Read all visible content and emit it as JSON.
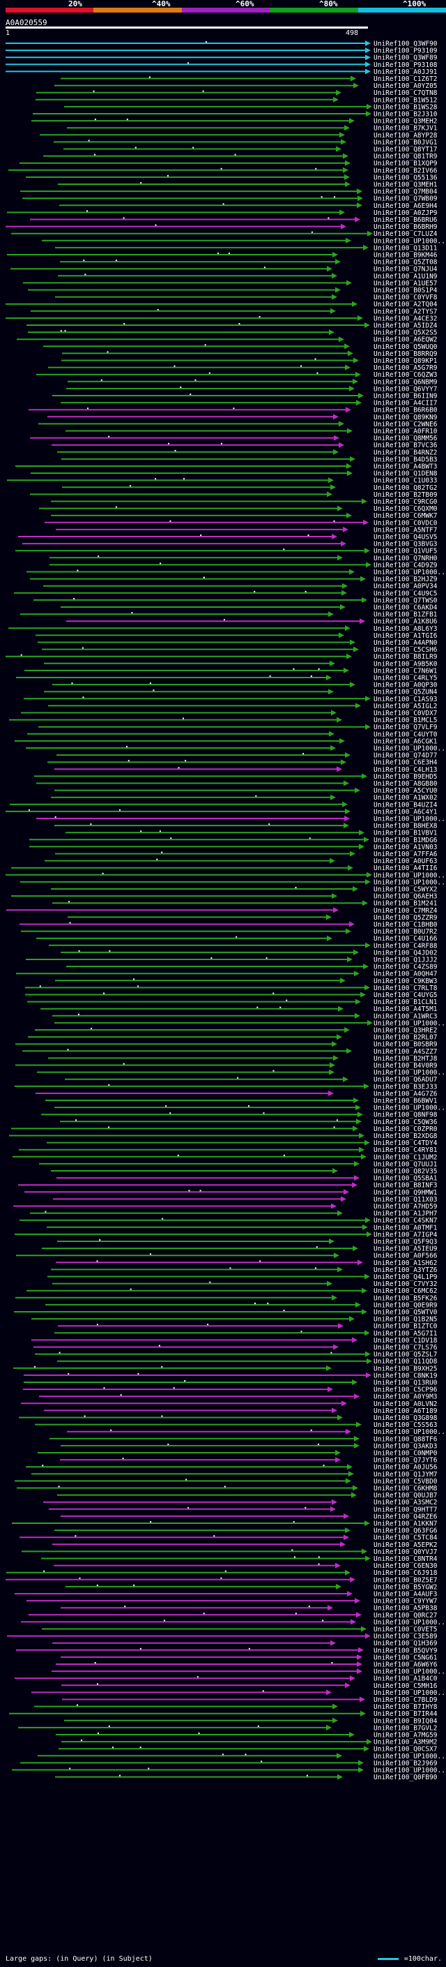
{
  "scale": {
    "labels": [
      "20%",
      "^40%",
      "^60%",
      "^80%",
      "^100%"
    ],
    "colors": [
      "#e0102a",
      "#e07a10",
      "#a020c0",
      "#10a020",
      "#10c0e0"
    ]
  },
  "query": {
    "title": "A0A020559",
    "start": "1",
    "end": "498"
  },
  "legend": {
    "large_gaps": "Large gaps:",
    "in_query": "(in Query)",
    "in_subject": "(in Subject)",
    "scale_note": "=100char."
  },
  "colors": {
    "cyan": "#22c8e0",
    "green": "#2aa51c",
    "magenta": "#c02cc4",
    "background": "#000010"
  },
  "hits": [
    {
      "id": "UniRef100_Q3WF90",
      "color": "cyan"
    },
    {
      "id": "UniRef100_P93109",
      "color": "cyan"
    },
    {
      "id": "UniRef100_Q3WF89",
      "color": "cyan"
    },
    {
      "id": "UniRef100_P93108",
      "color": "cyan"
    },
    {
      "id": "UniRef100_A0JJ91",
      "color": "cyan"
    },
    {
      "id": "UniRef100_C1Z6T2",
      "color": "green"
    },
    {
      "id": "UniRef100_A0YZ05",
      "color": "green"
    },
    {
      "id": "UniRef100_C7QTN8",
      "color": "green"
    },
    {
      "id": "UniRef100_B1W512",
      "color": "green"
    },
    {
      "id": "UniRef100_B1WS28",
      "color": "green"
    },
    {
      "id": "UniRef100_B2J310",
      "color": "green"
    },
    {
      "id": "UniRef100_Q3MEH2",
      "color": "green"
    },
    {
      "id": "UniRef100_B7KJV1",
      "color": "green"
    },
    {
      "id": "UniRef100_A8YP28",
      "color": "green"
    },
    {
      "id": "UniRef100_B0JVG1",
      "color": "green"
    },
    {
      "id": "UniRef100_Q8YT17",
      "color": "green"
    },
    {
      "id": "UniRef100_Q81TR9",
      "color": "green"
    },
    {
      "id": "UniRef100_B1XQP9",
      "color": "green"
    },
    {
      "id": "UniRef100_B2IV66",
      "color": "green"
    },
    {
      "id": "UniRef100_Q55136",
      "color": "green"
    },
    {
      "id": "UniRef100_Q3MEH1",
      "color": "green"
    },
    {
      "id": "UniRef100_Q7MB04",
      "color": "green"
    },
    {
      "id": "UniRef100_Q7WB09",
      "color": "green"
    },
    {
      "id": "UniRef100_A6E9H4",
      "color": "green"
    },
    {
      "id": "UniRef100_A0ZJP9",
      "color": "green"
    },
    {
      "id": "UniRef100_B6BRU6",
      "color": "magenta"
    },
    {
      "id": "UniRef100_B6BRH9",
      "color": "magenta"
    },
    {
      "id": "UniRef100_C7LUZ4",
      "color": "green"
    },
    {
      "id": "UniRef100_UP1000...",
      "color": "green"
    },
    {
      "id": "UniRef100_Q13D11",
      "color": "green"
    },
    {
      "id": "UniRef100_B9KM46",
      "color": "green"
    },
    {
      "id": "UniRef100_Q5ZT08",
      "color": "green"
    },
    {
      "id": "UniRef100_Q7NJU4",
      "color": "green"
    },
    {
      "id": "UniRef100_A1U1N9",
      "color": "green"
    },
    {
      "id": "UniRef100_A1UE57",
      "color": "green"
    },
    {
      "id": "UniRef100_B0S1P4",
      "color": "green"
    },
    {
      "id": "UniRef100_C0YVF8",
      "color": "green"
    },
    {
      "id": "UniRef100_A2TQ04",
      "color": "green"
    },
    {
      "id": "UniRef100_A2TYS7",
      "color": "green"
    },
    {
      "id": "UniRef100_A4CE32",
      "color": "green"
    },
    {
      "id": "UniRef100_A5IDZ4",
      "color": "green"
    },
    {
      "id": "UniRef100_Q5X2S5",
      "color": "green"
    },
    {
      "id": "UniRef100_A6EQW2",
      "color": "green"
    },
    {
      "id": "UniRef100_Q5WUQ0",
      "color": "green"
    },
    {
      "id": "UniRef100_B8RRQ9",
      "color": "green"
    },
    {
      "id": "UniRef100_Q89KP1",
      "color": "green"
    },
    {
      "id": "UniRef100_A5G7R9",
      "color": "green"
    },
    {
      "id": "UniRef100_C6QZW3",
      "color": "green"
    },
    {
      "id": "UniRef100_Q6NBM9",
      "color": "green"
    },
    {
      "id": "UniRef100_Q6VYY7",
      "color": "green"
    },
    {
      "id": "UniRef100_B6IIN9",
      "color": "green"
    },
    {
      "id": "UniRef100_A4CII7",
      "color": "green"
    },
    {
      "id": "UniRef100_B6R6B0",
      "color": "magenta"
    },
    {
      "id": "UniRef100_Q89KN9",
      "color": "magenta"
    },
    {
      "id": "UniRef100_C2WNE6",
      "color": "green"
    },
    {
      "id": "UniRef100_A0FR10",
      "color": "green"
    },
    {
      "id": "UniRef100_Q8MM56",
      "color": "magenta"
    },
    {
      "id": "UniRef100_B7VC36",
      "color": "magenta"
    },
    {
      "id": "UniRef100_B4RNZ2",
      "color": "green"
    },
    {
      "id": "UniRef100_B4D5B3",
      "color": "green"
    },
    {
      "id": "UniRef100_A4BWT3",
      "color": "green"
    },
    {
      "id": "UniRef100_Q1DEN8",
      "color": "green"
    },
    {
      "id": "UniRef100_C1U033",
      "color": "green"
    },
    {
      "id": "UniRef100_Q82TG2",
      "color": "green"
    },
    {
      "id": "UniRef100_B2TB09",
      "color": "green"
    },
    {
      "id": "UniRef100_C9RCG0",
      "color": "green"
    },
    {
      "id": "UniRef100_C6QXM0",
      "color": "green"
    },
    {
      "id": "UniRef100_C6MWK7",
      "color": "green"
    },
    {
      "id": "UniRef100_C0VDC0",
      "color": "magenta"
    },
    {
      "id": "UniRef100_A5NTF7",
      "color": "magenta"
    },
    {
      "id": "UniRef100_Q4USV5",
      "color": "magenta"
    },
    {
      "id": "UniRef100_Q3BVG3",
      "color": "magenta"
    },
    {
      "id": "UniRef100_Q1VUF5",
      "color": "green"
    },
    {
      "id": "UniRef100_Q7NRH0",
      "color": "green"
    },
    {
      "id": "UniRef100_C4D9Z9",
      "color": "green"
    },
    {
      "id": "UniRef100_UP1000...",
      "color": "green"
    },
    {
      "id": "UniRef100_B2HJZ9",
      "color": "green"
    },
    {
      "id": "UniRef100_A0PV34",
      "color": "green"
    },
    {
      "id": "UniRef100_C4U9C5",
      "color": "green"
    },
    {
      "id": "UniRef100_Q7TWS0",
      "color": "green"
    },
    {
      "id": "UniRef100_C6AKD4",
      "color": "green"
    },
    {
      "id": "UniRef100_B1ZFB1",
      "color": "green"
    },
    {
      "id": "UniRef100_A1K8U6",
      "color": "magenta"
    },
    {
      "id": "UniRef100_A8L6Y3",
      "color": "green"
    },
    {
      "id": "UniRef100_A1TGI6",
      "color": "green"
    },
    {
      "id": "UniRef100_A4APN0",
      "color": "green"
    },
    {
      "id": "UniRef100_C5CSH6",
      "color": "green"
    },
    {
      "id": "UniRef100_B8ILR9",
      "color": "green"
    },
    {
      "id": "UniRef100_A9B5K0",
      "color": "green"
    },
    {
      "id": "UniRef100_C7N6W1",
      "color": "green"
    },
    {
      "id": "UniRef100_C4RLY5",
      "color": "green"
    },
    {
      "id": "UniRef100_A0QP30",
      "color": "green"
    },
    {
      "id": "UniRef100_Q5ZUN4",
      "color": "green"
    },
    {
      "id": "UniRef100_C1AS93",
      "color": "green"
    },
    {
      "id": "UniRef100_A5IGL2",
      "color": "green"
    },
    {
      "id": "UniRef100_C0VDX7",
      "color": "green"
    },
    {
      "id": "UniRef100_B1MCL5",
      "color": "green"
    },
    {
      "id": "UniRef100_Q7VLF9",
      "color": "green"
    },
    {
      "id": "UniRef100_C4UYT0",
      "color": "green"
    },
    {
      "id": "UniRef100_A6CGK1",
      "color": "green"
    },
    {
      "id": "UniRef100_UP1000...",
      "color": "green"
    },
    {
      "id": "UniRef100_Q74D77",
      "color": "green"
    },
    {
      "id": "UniRef100_C6E3H4",
      "color": "green"
    },
    {
      "id": "UniRef100_C4LH13",
      "color": "magenta"
    },
    {
      "id": "UniRef100_B9EHD5",
      "color": "green"
    },
    {
      "id": "UniRef100_A8GB80",
      "color": "green"
    },
    {
      "id": "UniRef100_A5CYU0",
      "color": "green"
    },
    {
      "id": "UniRef100_A1WX02",
      "color": "green"
    },
    {
      "id": "UniRef100_B4UZI4",
      "color": "green"
    },
    {
      "id": "UniRef100_A6C4Y1",
      "color": "green"
    },
    {
      "id": "UniRef100_UP1000...",
      "color": "magenta"
    },
    {
      "id": "UniRef100_B8HEX8",
      "color": "green"
    },
    {
      "id": "UniRef100_B1VBV1",
      "color": "green"
    },
    {
      "id": "UniRef100_B1MDG6",
      "color": "green"
    },
    {
      "id": "UniRef100_A1VN03",
      "color": "green"
    },
    {
      "id": "UniRef100_A7FFA6",
      "color": "green"
    },
    {
      "id": "UniRef100_A0UF63",
      "color": "green"
    },
    {
      "id": "UniRef100_A4TII6",
      "color": "green"
    },
    {
      "id": "UniRef100_UP1000...",
      "color": "green"
    },
    {
      "id": "UniRef100_UP1000...",
      "color": "green"
    },
    {
      "id": "UniRef100_C5WYX2",
      "color": "green"
    },
    {
      "id": "UniRef100_Q6AEH3",
      "color": "green"
    },
    {
      "id": "UniRef100_B1M241",
      "color": "green"
    },
    {
      "id": "UniRef100_C7MRZ4",
      "color": "magenta"
    },
    {
      "id": "UniRef100_Q5ZZR9",
      "color": "green"
    },
    {
      "id": "UniRef100_C1BHB0",
      "color": "magenta"
    },
    {
      "id": "UniRef100_B0U7R2",
      "color": "green"
    },
    {
      "id": "UniRef100_C4U166",
      "color": "green"
    },
    {
      "id": "UniRef100_C4RF88",
      "color": "green"
    },
    {
      "id": "UniRef100_Q4JD02",
      "color": "green"
    },
    {
      "id": "UniRef100_Q1JJJ2",
      "color": "green"
    },
    {
      "id": "UniRef100_C4ZS89",
      "color": "green"
    },
    {
      "id": "UniRef100_A0QH47",
      "color": "green"
    },
    {
      "id": "UniRef100_C9KBW3",
      "color": "green"
    },
    {
      "id": "UniRef100_C7RLT8",
      "color": "green"
    },
    {
      "id": "UniRef100_C4UYG5",
      "color": "green"
    },
    {
      "id": "UniRef100_B1CLN1",
      "color": "green"
    },
    {
      "id": "UniRef100_A4T5M1",
      "color": "green"
    },
    {
      "id": "UniRef100_A1WRC3",
      "color": "green"
    },
    {
      "id": "UniRef100_UP1000...",
      "color": "green"
    },
    {
      "id": "UniRef100_Q3HRE2",
      "color": "green"
    },
    {
      "id": "UniRef100_B2RL07",
      "color": "green"
    },
    {
      "id": "UniRef100_B0SBR9",
      "color": "green"
    },
    {
      "id": "UniRef100_A4SZZ7",
      "color": "green"
    },
    {
      "id": "UniRef100_B2HTJ8",
      "color": "green"
    },
    {
      "id": "UniRef100_B4V0R9",
      "color": "green"
    },
    {
      "id": "UniRef100_UP1000...",
      "color": "green"
    },
    {
      "id": "UniRef100_Q6ADU7",
      "color": "green"
    },
    {
      "id": "UniRef100_B3EJ33",
      "color": "green"
    },
    {
      "id": "UniRef100_A4G7Z6",
      "color": "magenta"
    },
    {
      "id": "UniRef100_B6BWV1",
      "color": "green"
    },
    {
      "id": "UniRef100_UP1000...",
      "color": "green"
    },
    {
      "id": "UniRef100_Q8NF98",
      "color": "green"
    },
    {
      "id": "UniRef100_C5QW36",
      "color": "green"
    },
    {
      "id": "UniRef100_C0ZPR0",
      "color": "green"
    },
    {
      "id": "UniRef100_B2XDG8",
      "color": "green"
    },
    {
      "id": "UniRef100_C4TDY4",
      "color": "green"
    },
    {
      "id": "UniRef100_C4RY81",
      "color": "green"
    },
    {
      "id": "UniRef100_C1JUM2",
      "color": "green"
    },
    {
      "id": "UniRef100_Q7UUJ1",
      "color": "green"
    },
    {
      "id": "UniRef100_Q82V35",
      "color": "green"
    },
    {
      "id": "UniRef100_Q5SBA1",
      "color": "magenta"
    },
    {
      "id": "UniRef100_B8INF3",
      "color": "magenta"
    },
    {
      "id": "UniRef100_Q9HMW1",
      "color": "magenta"
    },
    {
      "id": "UniRef100_Q11X03",
      "color": "magenta"
    },
    {
      "id": "UniRef100_A7HD59",
      "color": "magenta"
    },
    {
      "id": "UniRef100_A1JPH7",
      "color": "green"
    },
    {
      "id": "UniRef100_C4SKN7",
      "color": "green"
    },
    {
      "id": "UniRef100_A0TMF1",
      "color": "green"
    },
    {
      "id": "UniRef100_A7IGP4",
      "color": "green"
    },
    {
      "id": "UniRef100_Q5F9Q3",
      "color": "green"
    },
    {
      "id": "UniRef100_A5IEU9",
      "color": "green"
    },
    {
      "id": "UniRef100_A0F566",
      "color": "green"
    },
    {
      "id": "UniRef100_A1SH62",
      "color": "magenta"
    },
    {
      "id": "UniRef100_A3YTZ6",
      "color": "green"
    },
    {
      "id": "UniRef100_Q4L1P9",
      "color": "green"
    },
    {
      "id": "UniRef100_C7VY32",
      "color": "green"
    },
    {
      "id": "UniRef100_C6MC62",
      "color": "green"
    },
    {
      "id": "UniRef100_B5FK26",
      "color": "green"
    },
    {
      "id": "UniRef100_Q0E9R9",
      "color": "green"
    },
    {
      "id": "UniRef100_Q5WTV0",
      "color": "green"
    },
    {
      "id": "UniRef100_Q1B2N5",
      "color": "green"
    },
    {
      "id": "UniRef100_B1ZTC0",
      "color": "magenta"
    },
    {
      "id": "UniRef100_A5G7I1",
      "color": "green"
    },
    {
      "id": "UniRef100_C1DV18",
      "color": "magenta"
    },
    {
      "id": "UniRef100_C7LS76",
      "color": "magenta"
    },
    {
      "id": "UniRef100_Q5ZSL7",
      "color": "green"
    },
    {
      "id": "UniRef100_Q11QD8",
      "color": "green"
    },
    {
      "id": "UniRef100_B9XH25",
      "color": "green"
    },
    {
      "id": "UniRef100_C8NK19",
      "color": "magenta"
    },
    {
      "id": "UniRef100_Q13RU0",
      "color": "green"
    },
    {
      "id": "UniRef100_C5CP96",
      "color": "magenta"
    },
    {
      "id": "UniRef100_A0Y9M3",
      "color": "magenta"
    },
    {
      "id": "UniRef100_A0LVN2",
      "color": "magenta"
    },
    {
      "id": "UniRef100_A6T189",
      "color": "magenta"
    },
    {
      "id": "UniRef100_Q3G898",
      "color": "green"
    },
    {
      "id": "UniRef100_C5S563",
      "color": "green"
    },
    {
      "id": "UniRef100_UP1000...",
      "color": "magenta"
    },
    {
      "id": "UniRef100_Q88TF6",
      "color": "green"
    },
    {
      "id": "UniRef100_Q3AKD3",
      "color": "green"
    },
    {
      "id": "UniRef100_C0NMP0",
      "color": "green"
    },
    {
      "id": "UniRef100_Q7JYT6",
      "color": "magenta"
    },
    {
      "id": "UniRef100_A0JU56",
      "color": "green"
    },
    {
      "id": "UniRef100_Q1JYM7",
      "color": "green"
    },
    {
      "id": "UniRef100_C5VBD0",
      "color": "green"
    },
    {
      "id": "UniRef100_C6KHM8",
      "color": "green"
    },
    {
      "id": "UniRef100_Q0UJB7",
      "color": "green"
    },
    {
      "id": "UniRef100_A3SMC2",
      "color": "magenta"
    },
    {
      "id": "UniRef100_Q9HTT7",
      "color": "magenta"
    },
    {
      "id": "UniRef100_Q4RZE6",
      "color": "magenta"
    },
    {
      "id": "UniRef100_A1KKN7",
      "color": "green"
    },
    {
      "id": "UniRef100_Q63FG6",
      "color": "green"
    },
    {
      "id": "UniRef100_C5TC84",
      "color": "magenta"
    },
    {
      "id": "UniRef100_A5EPK2",
      "color": "magenta"
    },
    {
      "id": "UniRef100_Q0YVJ7",
      "color": "green"
    },
    {
      "id": "UniRef100_C8NTR4",
      "color": "green"
    },
    {
      "id": "UniRef100_C6EN30",
      "color": "magenta"
    },
    {
      "id": "UniRef100_C6J918",
      "color": "green"
    },
    {
      "id": "UniRef100_B0Z5E7",
      "color": "magenta"
    },
    {
      "id": "UniRef100_B5YGW2",
      "color": "green"
    },
    {
      "id": "UniRef100_A4AUF3",
      "color": "magenta"
    },
    {
      "id": "UniRef100_C9YYW7",
      "color": "magenta"
    },
    {
      "id": "UniRef100_A5PB38",
      "color": "magenta"
    },
    {
      "id": "UniRef100_Q0RC27",
      "color": "magenta"
    },
    {
      "id": "UniRef100_UP1000...",
      "color": "magenta"
    },
    {
      "id": "UniRef100_C0VET5",
      "color": "green"
    },
    {
      "id": "UniRef100_C3E589",
      "color": "magenta"
    },
    {
      "id": "UniRef100_Q1H369",
      "color": "magenta"
    },
    {
      "id": "UniRef100_B5QVY9",
      "color": "magenta"
    },
    {
      "id": "UniRef100_C5NG61",
      "color": "magenta"
    },
    {
      "id": "UniRef100_A6W6Y6",
      "color": "magenta"
    },
    {
      "id": "UniRef100_UP1000...",
      "color": "magenta"
    },
    {
      "id": "UniRef100_A1B4C0",
      "color": "magenta"
    },
    {
      "id": "UniRef100_C5MH16",
      "color": "magenta"
    },
    {
      "id": "UniRef100_UP1000...",
      "color": "magenta"
    },
    {
      "id": "UniRef100_C7BLD9",
      "color": "magenta"
    },
    {
      "id": "UniRef100_B7IHY8",
      "color": "green"
    },
    {
      "id": "UniRef100_B7IR44",
      "color": "green"
    },
    {
      "id": "UniRef100_B9IQ04",
      "color": "green"
    },
    {
      "id": "UniRef100_B7GVL2",
      "color": "green"
    },
    {
      "id": "UniRef100_A7MG59",
      "color": "green"
    },
    {
      "id": "UniRef100_A3M9M2",
      "color": "green"
    },
    {
      "id": "UniRef100_Q0CSX7",
      "color": "green"
    },
    {
      "id": "UniRef100_UP1000...",
      "color": "green"
    },
    {
      "id": "UniRef100_B2J969",
      "color": "green"
    },
    {
      "id": "UniRef100_UP1000...",
      "color": "green"
    },
    {
      "id": "UniRef100_Q0FB90",
      "color": "green"
    }
  ]
}
